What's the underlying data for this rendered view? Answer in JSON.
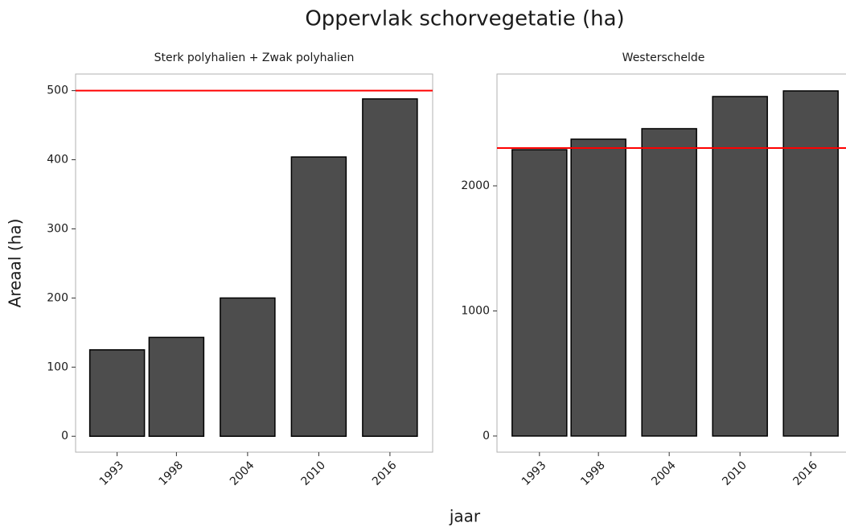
{
  "title": "Oppervlak schorvegetatie (ha)",
  "xlabel": "jaar",
  "ylabel": "Areaal (ha)",
  "chart_data": [
    {
      "type": "bar",
      "title": "Sterk polyhalien + Zwak polyhalien",
      "x": [
        1993,
        1998,
        2004,
        2010,
        2016
      ],
      "values": [
        125,
        143,
        200,
        404,
        488
      ],
      "color": "#4d4d4d",
      "xlim": [
        1989.5,
        2019.6
      ],
      "xticks": [
        1993,
        1998,
        2004,
        2010,
        2016
      ],
      "ylim": [
        -23,
        524
      ],
      "yticks": [
        0,
        100,
        200,
        300,
        400,
        500
      ],
      "hline": {
        "value": 500,
        "color": "#ff0000"
      }
    },
    {
      "type": "bar",
      "title": "Westerschelde",
      "x": [
        1993,
        1998,
        2004,
        2010,
        2016
      ],
      "values": [
        2289,
        2373,
        2457,
        2714,
        2759
      ],
      "color": "#4d4d4d",
      "xlim": [
        1989.4,
        2019.6
      ],
      "xticks": [
        1993,
        1998,
        2004,
        2010,
        2016
      ],
      "ylim": [
        -129,
        2894
      ],
      "yticks": [
        0,
        1000,
        2000
      ],
      "hline": {
        "value": 2302,
        "color": "#ff0000"
      }
    }
  ]
}
